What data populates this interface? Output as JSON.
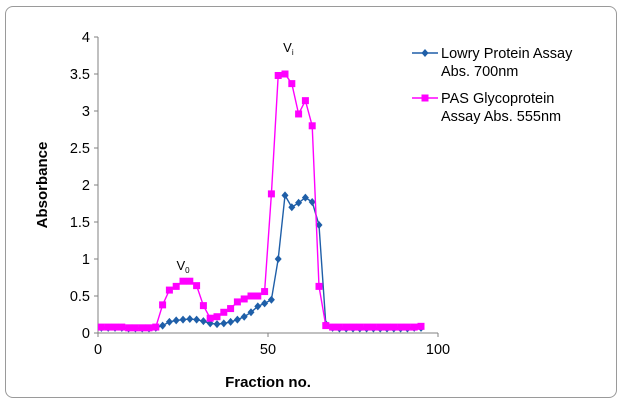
{
  "chart_data": {
    "type": "line",
    "xlabel": "Fraction no.",
    "ylabel": "Absorbance",
    "xlim": [
      0,
      100
    ],
    "ylim": [
      0,
      4
    ],
    "x_ticks": [
      "0",
      "50",
      "100"
    ],
    "y_ticks": [
      "0",
      "0.5",
      "1",
      "1.5",
      "2",
      "2.5",
      "3",
      "3.5",
      "4"
    ],
    "grid": false,
    "legend_position": "top-right",
    "annotations": [
      {
        "base": "V",
        "sub": "0",
        "x": 25,
        "y": 0.85
      },
      {
        "base": "V",
        "sub": "i",
        "x": 56,
        "y": 3.8
      }
    ],
    "series": [
      {
        "name": "Lowry Protein Assay Abs. 700nm",
        "color": "#1f5fa8",
        "marker": "diamond",
        "x": [
          1,
          3,
          5,
          7,
          9,
          11,
          13,
          15,
          17,
          19,
          21,
          23,
          25,
          27,
          29,
          31,
          33,
          35,
          37,
          39,
          41,
          43,
          45,
          47,
          49,
          51,
          53,
          55,
          57,
          59,
          61,
          63,
          65,
          67,
          69,
          71,
          73,
          75,
          77,
          79,
          81,
          83,
          85,
          87,
          89,
          91,
          93,
          95
        ],
        "y": [
          0.07,
          0.07,
          0.07,
          0.07,
          0.06,
          0.06,
          0.06,
          0.06,
          0.07,
          0.1,
          0.15,
          0.17,
          0.18,
          0.19,
          0.18,
          0.16,
          0.13,
          0.12,
          0.13,
          0.15,
          0.18,
          0.22,
          0.28,
          0.36,
          0.4,
          0.45,
          1.0,
          1.86,
          1.7,
          1.76,
          1.83,
          1.77,
          1.46,
          0.12,
          0.07,
          0.06,
          0.06,
          0.06,
          0.06,
          0.06,
          0.06,
          0.06,
          0.06,
          0.06,
          0.06,
          0.06,
          0.07,
          0.07
        ]
      },
      {
        "name": "PAS Glycoprotein Assay Abs. 555nm",
        "color": "#ff00ff",
        "marker": "square",
        "x": [
          1,
          3,
          5,
          7,
          9,
          11,
          13,
          15,
          17,
          19,
          21,
          23,
          25,
          27,
          29,
          31,
          33,
          35,
          37,
          39,
          41,
          43,
          45,
          47,
          49,
          51,
          53,
          55,
          57,
          59,
          61,
          63,
          65,
          67,
          69,
          71,
          73,
          75,
          77,
          79,
          81,
          83,
          85,
          87,
          89,
          91,
          93,
          95
        ],
        "y": [
          0.08,
          0.08,
          0.08,
          0.08,
          0.07,
          0.07,
          0.07,
          0.07,
          0.08,
          0.38,
          0.58,
          0.63,
          0.7,
          0.7,
          0.64,
          0.37,
          0.2,
          0.22,
          0.28,
          0.33,
          0.42,
          0.46,
          0.5,
          0.5,
          0.56,
          1.88,
          3.48,
          3.5,
          3.37,
          2.96,
          3.14,
          2.8,
          0.63,
          0.1,
          0.08,
          0.08,
          0.08,
          0.08,
          0.08,
          0.08,
          0.08,
          0.08,
          0.08,
          0.08,
          0.08,
          0.08,
          0.08,
          0.09
        ]
      }
    ]
  }
}
